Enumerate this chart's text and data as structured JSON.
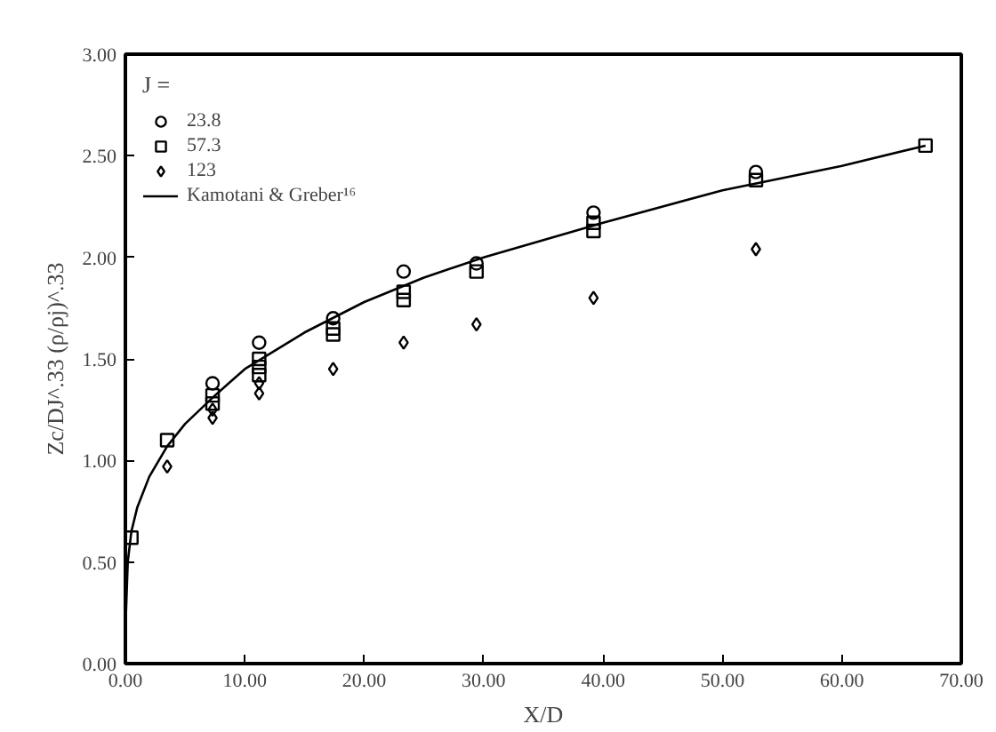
{
  "chart_data": {
    "type": "scatter",
    "xlabel": "X/D",
    "ylabel": "Zc/DJ^.33 (ρ/ρj)^.33",
    "legend_title": "J =",
    "xlim": [
      0,
      70
    ],
    "ylim": [
      0,
      3
    ],
    "xticks": [
      {
        "value": 0,
        "label": "0.00"
      },
      {
        "value": 10,
        "label": "10.00"
      },
      {
        "value": 20,
        "label": "20.00"
      },
      {
        "value": 30,
        "label": "30.00"
      },
      {
        "value": 40,
        "label": "40.00"
      },
      {
        "value": 50,
        "label": "50.00"
      },
      {
        "value": 60,
        "label": "60.00"
      },
      {
        "value": 70,
        "label": "70.00"
      }
    ],
    "yticks": [
      {
        "value": 0,
        "label": "0.00"
      },
      {
        "value": 0.5,
        "label": "0.50"
      },
      {
        "value": 1,
        "label": "1.00"
      },
      {
        "value": 1.5,
        "label": "1.50"
      },
      {
        "value": 2,
        "label": "2.00"
      },
      {
        "value": 2.5,
        "label": "2.50"
      },
      {
        "value": 3,
        "label": "3.00"
      }
    ],
    "grid": false,
    "legend": "top left",
    "series": [
      {
        "name": "23.8",
        "color": "#000000",
        "marker": "circle",
        "x": [
          7.3,
          11.2,
          17.4,
          23.3,
          29.4,
          39.2,
          52.8
        ],
        "values": [
          1.38,
          1.58,
          1.7,
          1.93,
          1.97,
          2.22,
          2.42
        ]
      },
      {
        "name": "57.3",
        "color": "#000000",
        "marker": "square",
        "x": [
          0.5,
          3.5,
          7.3,
          7.3,
          11.2,
          11.2,
          11.2,
          17.4,
          17.4,
          23.3,
          23.3,
          29.4,
          39.2,
          39.2,
          52.8,
          67
        ],
        "values": [
          0.62,
          1.1,
          1.32,
          1.28,
          1.5,
          1.46,
          1.42,
          1.65,
          1.62,
          1.83,
          1.79,
          1.93,
          2.17,
          2.13,
          2.38,
          2.55
        ]
      },
      {
        "name": "123",
        "color": "#000000",
        "marker": "diamond",
        "x": [
          3.5,
          7.3,
          7.3,
          11.2,
          11.2,
          17.4,
          23.3,
          29.4,
          39.2,
          52.8
        ],
        "values": [
          0.97,
          1.25,
          1.21,
          1.38,
          1.33,
          1.45,
          1.58,
          1.67,
          1.8,
          2.04
        ]
      },
      {
        "name": "Kamotani & Greber¹⁶",
        "color": "#000000",
        "type": "line",
        "line_style": "solid",
        "x": [
          0.05,
          0.2,
          0.5,
          1,
          2,
          3.5,
          5,
          7.5,
          10,
          15,
          20,
          25,
          30,
          40,
          50,
          60,
          67
        ],
        "values": [
          0.25,
          0.5,
          0.65,
          0.77,
          0.92,
          1.07,
          1.18,
          1.32,
          1.45,
          1.63,
          1.78,
          1.9,
          2.0,
          2.17,
          2.33,
          2.45,
          2.55
        ]
      }
    ]
  }
}
